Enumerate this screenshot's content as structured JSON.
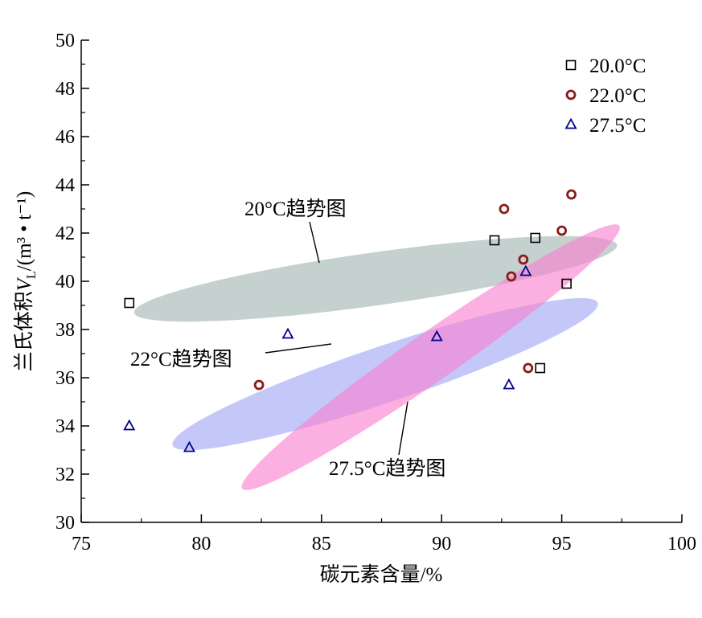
{
  "chart_data": {
    "type": "scatter",
    "xlabel": "碳元素含量/%",
    "ylabel_main": "兰氏体积",
    "ylabel_var": "V",
    "ylabel_sub": "L",
    "ylabel_unit": "/(m³ • t⁻¹)",
    "xlim": [
      75,
      100
    ],
    "ylim": [
      30,
      50
    ],
    "xticks": [
      75,
      80,
      85,
      90,
      95,
      100
    ],
    "yticks": [
      30,
      32,
      34,
      36,
      38,
      40,
      42,
      44,
      46,
      48,
      50
    ],
    "legend_position": "top-right",
    "series": [
      {
        "name": "20.0°C",
        "marker": "square",
        "color": "#000000",
        "points": [
          [
            77.0,
            39.1
          ],
          [
            92.2,
            41.7
          ],
          [
            93.9,
            41.8
          ],
          [
            95.2,
            39.9
          ],
          [
            94.1,
            36.4
          ]
        ]
      },
      {
        "name": "22.0°C",
        "marker": "circle",
        "color": "#8b1a1a",
        "points": [
          [
            92.6,
            43.0
          ],
          [
            95.4,
            43.6
          ],
          [
            95.0,
            42.1
          ],
          [
            93.4,
            40.9
          ],
          [
            92.9,
            40.2
          ],
          [
            93.6,
            36.4
          ],
          [
            82.4,
            35.7
          ]
        ]
      },
      {
        "name": "27.5°C",
        "marker": "triangle",
        "color": "#00008b",
        "points": [
          [
            77.0,
            34.0
          ],
          [
            79.5,
            33.1
          ],
          [
            83.6,
            37.8
          ],
          [
            89.8,
            37.7
          ],
          [
            93.5,
            40.4
          ],
          [
            92.8,
            35.7
          ]
        ]
      }
    ],
    "trend_regions": [
      {
        "label": "20°C趋势图",
        "color": "#c2cfcc"
      },
      {
        "label": "27.5°C趋势图",
        "color": "#b8bef8"
      },
      {
        "label": "22°C趋势图",
        "color": "#f97fcf"
      }
    ]
  }
}
